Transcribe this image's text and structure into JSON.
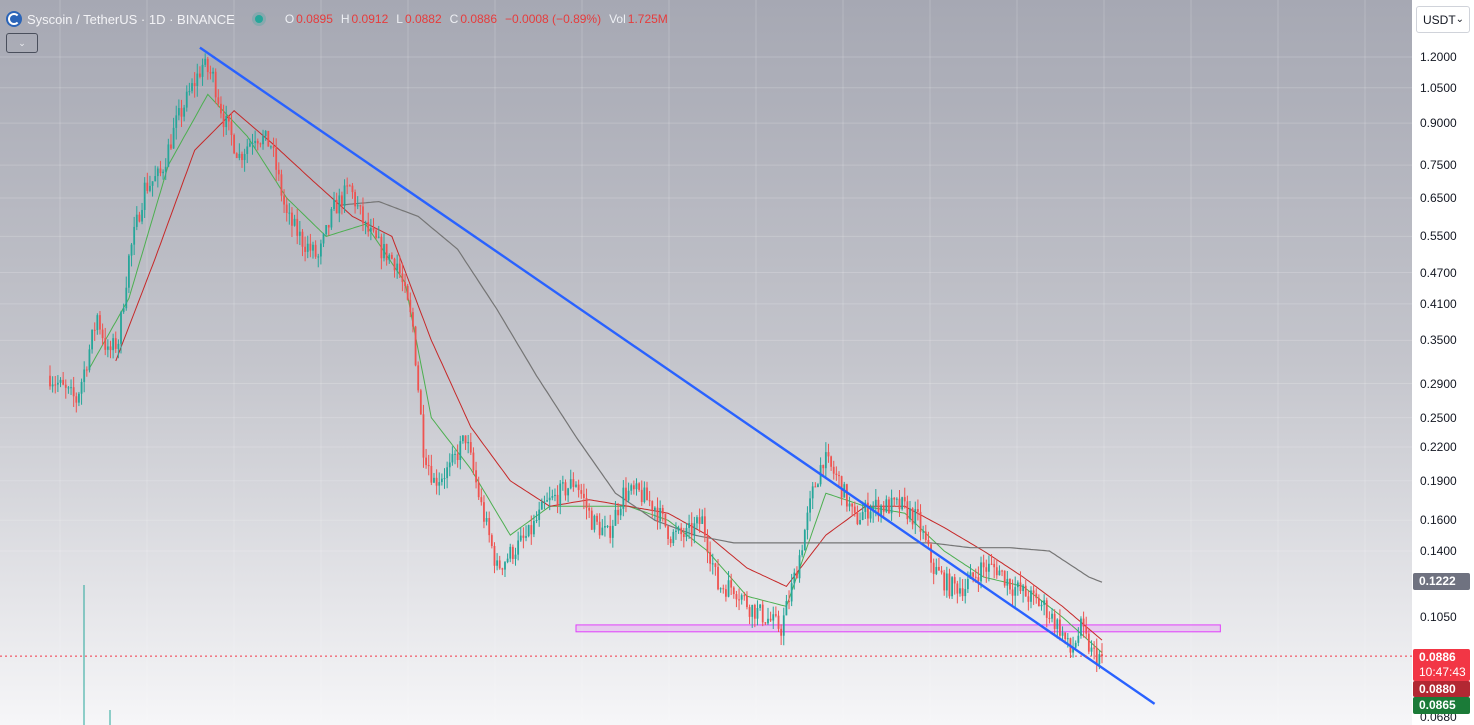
{
  "header": {
    "title": "Syscoin / TetherUS · 1D · BINANCE",
    "ohlc": [
      {
        "key": "O",
        "value": "0.0895"
      },
      {
        "key": "H",
        "value": "0.0912"
      },
      {
        "key": "L",
        "value": "0.0882"
      },
      {
        "key": "C",
        "value": "0.0886"
      },
      {
        "key": "",
        "value": "−0.0008 (−0.89%)"
      },
      {
        "key": "Vol",
        "value": "1.725M"
      }
    ]
  },
  "currency_selector": {
    "label": "USDT"
  },
  "collapse_icon": "chevron-down-icon",
  "price_badges": {
    "ma_long": {
      "value": "0.1222",
      "color": "#787b86"
    },
    "last": {
      "value": "0.0886",
      "countdown": "10:47:43",
      "color": "#f23645"
    },
    "low": {
      "value": "0.0880",
      "color": "#b22833"
    },
    "level": {
      "value": "0.0865",
      "color": "#1b7b38"
    }
  },
  "chart_data": {
    "type": "candlestick",
    "title": "Syscoin / TetherUS · 1D · BINANCE",
    "y_scale": "log",
    "ylim": [
      0.066,
      1.27
    ],
    "y_ticks": [
      1.2,
      1.05,
      0.9,
      0.75,
      0.65,
      0.55,
      0.47,
      0.41,
      0.35,
      0.29,
      0.25,
      0.22,
      0.19,
      0.16,
      0.14,
      0.1222,
      0.105,
      0.0886,
      0.088,
      0.0865,
      0.068
    ],
    "y_tick_labels": [
      "1.2000",
      "1.0500",
      "0.9000",
      "0.7500",
      "0.6500",
      "0.5500",
      "0.4700",
      "0.4100",
      "0.3500",
      "0.2900",
      "0.2500",
      "0.2200",
      "0.1900",
      "0.1600",
      "0.1400",
      "0.1222",
      "0.1050",
      "0.0886",
      "0.0880",
      "0.0865",
      "0.0680"
    ],
    "up_color": "#26a69a",
    "down_color": "#ef5350",
    "price_path": [
      [
        0,
        0.3
      ],
      [
        6,
        0.28
      ],
      [
        10,
        0.27
      ],
      [
        14,
        0.32
      ],
      [
        18,
        0.39
      ],
      [
        22,
        0.33
      ],
      [
        26,
        0.35
      ],
      [
        30,
        0.5
      ],
      [
        36,
        0.68
      ],
      [
        42,
        0.72
      ],
      [
        48,
        0.9
      ],
      [
        54,
        1.05
      ],
      [
        58,
        1.16
      ],
      [
        62,
        1.1
      ],
      [
        66,
        0.92
      ],
      [
        72,
        0.78
      ],
      [
        78,
        0.86
      ],
      [
        84,
        0.82
      ],
      [
        90,
        0.6
      ],
      [
        96,
        0.54
      ],
      [
        102,
        0.5
      ],
      [
        108,
        0.62
      ],
      [
        114,
        0.68
      ],
      [
        120,
        0.57
      ],
      [
        126,
        0.52
      ],
      [
        132,
        0.49
      ],
      [
        138,
        0.37
      ],
      [
        142,
        0.22
      ],
      [
        146,
        0.19
      ],
      [
        152,
        0.2
      ],
      [
        158,
        0.23
      ],
      [
        164,
        0.17
      ],
      [
        170,
        0.13
      ],
      [
        176,
        0.14
      ],
      [
        182,
        0.15
      ],
      [
        188,
        0.17
      ],
      [
        194,
        0.18
      ],
      [
        200,
        0.19
      ],
      [
        206,
        0.16
      ],
      [
        212,
        0.15
      ],
      [
        218,
        0.18
      ],
      [
        224,
        0.18
      ],
      [
        230,
        0.17
      ],
      [
        236,
        0.15
      ],
      [
        242,
        0.15
      ],
      [
        248,
        0.16
      ],
      [
        254,
        0.12
      ],
      [
        260,
        0.12
      ],
      [
        266,
        0.11
      ],
      [
        272,
        0.105
      ],
      [
        278,
        0.1
      ],
      [
        284,
        0.13
      ],
      [
        290,
        0.18
      ],
      [
        294,
        0.21
      ],
      [
        300,
        0.19
      ],
      [
        306,
        0.16
      ],
      [
        312,
        0.17
      ],
      [
        318,
        0.17
      ],
      [
        324,
        0.17
      ],
      [
        330,
        0.16
      ],
      [
        336,
        0.13
      ],
      [
        342,
        0.12
      ],
      [
        348,
        0.12
      ],
      [
        354,
        0.13
      ],
      [
        360,
        0.13
      ],
      [
        366,
        0.12
      ],
      [
        372,
        0.115
      ],
      [
        378,
        0.11
      ],
      [
        384,
        0.1
      ],
      [
        388,
        0.09
      ],
      [
        392,
        0.1
      ],
      [
        396,
        0.09
      ],
      [
        400,
        0.088
      ]
    ],
    "series": [
      {
        "color": "#4caf50",
        "values": [
          [
            15,
            0.31
          ],
          [
            30,
            0.42
          ],
          [
            45,
            0.75
          ],
          [
            60,
            1.02
          ],
          [
            75,
            0.85
          ],
          [
            90,
            0.65
          ],
          [
            105,
            0.55
          ],
          [
            120,
            0.58
          ],
          [
            135,
            0.45
          ],
          [
            145,
            0.25
          ],
          [
            160,
            0.2
          ],
          [
            175,
            0.15
          ],
          [
            190,
            0.17
          ],
          [
            205,
            0.17
          ],
          [
            220,
            0.17
          ],
          [
            235,
            0.16
          ],
          [
            250,
            0.14
          ],
          [
            265,
            0.115
          ],
          [
            280,
            0.11
          ],
          [
            295,
            0.18
          ],
          [
            310,
            0.17
          ],
          [
            325,
            0.165
          ],
          [
            340,
            0.14
          ],
          [
            355,
            0.125
          ],
          [
            370,
            0.12
          ],
          [
            385,
            0.105
          ],
          [
            400,
            0.09
          ]
        ]
      },
      {
        "color": "#c62828",
        "values": [
          [
            25,
            0.32
          ],
          [
            40,
            0.5
          ],
          [
            55,
            0.8
          ],
          [
            70,
            0.95
          ],
          [
            85,
            0.82
          ],
          [
            100,
            0.7
          ],
          [
            115,
            0.6
          ],
          [
            130,
            0.55
          ],
          [
            145,
            0.35
          ],
          [
            160,
            0.24
          ],
          [
            175,
            0.19
          ],
          [
            190,
            0.17
          ],
          [
            205,
            0.175
          ],
          [
            220,
            0.17
          ],
          [
            235,
            0.165
          ],
          [
            250,
            0.15
          ],
          [
            265,
            0.13
          ],
          [
            280,
            0.12
          ],
          [
            295,
            0.15
          ],
          [
            310,
            0.17
          ],
          [
            325,
            0.17
          ],
          [
            340,
            0.155
          ],
          [
            355,
            0.14
          ],
          [
            370,
            0.125
          ],
          [
            385,
            0.11
          ],
          [
            400,
            0.095
          ]
        ]
      },
      {
        "color": "#757575",
        "values": [
          [
            110,
            0.63
          ],
          [
            125,
            0.64
          ],
          [
            140,
            0.6
          ],
          [
            155,
            0.52
          ],
          [
            170,
            0.4
          ],
          [
            185,
            0.3
          ],
          [
            200,
            0.23
          ],
          [
            215,
            0.18
          ],
          [
            230,
            0.16
          ],
          [
            245,
            0.15
          ],
          [
            260,
            0.145
          ],
          [
            275,
            0.145
          ],
          [
            290,
            0.145
          ],
          [
            305,
            0.145
          ],
          [
            320,
            0.145
          ],
          [
            335,
            0.145
          ],
          [
            350,
            0.142
          ],
          [
            365,
            0.142
          ],
          [
            380,
            0.14
          ],
          [
            395,
            0.125
          ],
          [
            400,
            0.1222
          ]
        ]
      }
    ],
    "trendline": {
      "color": "#2962ff",
      "points": [
        [
          57,
          1.25
        ],
        [
          420,
          0.072
        ]
      ]
    },
    "support_zone": {
      "color": "#e040fb",
      "from": [
        200,
        445
      ],
      "y_range": [
        0.0985,
        0.1015
      ]
    }
  }
}
